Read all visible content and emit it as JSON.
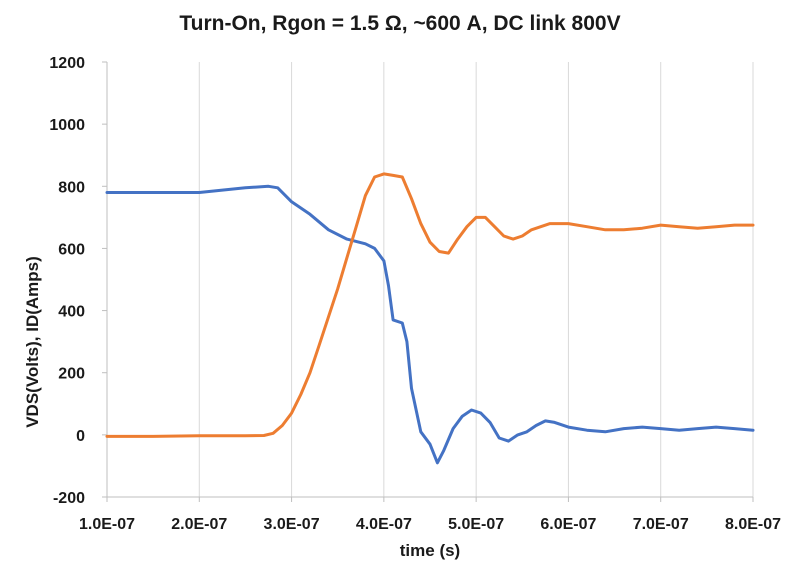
{
  "chart_data": {
    "type": "line",
    "title": "Turn-On, Rgon = 1.5 Ω, ~600 A, DC link 800V",
    "xlabel": "time (s)",
    "ylabel": "VDS(Volts), ID(Amps)",
    "xlim": [
      1e-07,
      8e-07
    ],
    "ylim": [
      -200,
      1200
    ],
    "x_ticks": [
      1e-07,
      2e-07,
      3e-07,
      4e-07,
      5e-07,
      6e-07,
      7e-07,
      8e-07
    ],
    "x_tick_labels": [
      "1.0E-07",
      "2.0E-07",
      "3.0E-07",
      "4.0E-07",
      "5.0E-07",
      "6.0E-07",
      "7.0E-07",
      "8.0E-07"
    ],
    "y_ticks": [
      -200,
      0,
      200,
      400,
      600,
      800,
      1000,
      1200
    ],
    "y_tick_labels": [
      "-200",
      "0",
      "200",
      "400",
      "600",
      "800",
      "1000",
      "1200"
    ],
    "grid": "vertical",
    "legend": "none",
    "series": [
      {
        "color": "#4472C4",
        "x": [
          1e-07,
          1.5e-07,
          2e-07,
          2.5e-07,
          2.75e-07,
          2.85e-07,
          3e-07,
          3.2e-07,
          3.4e-07,
          3.6e-07,
          3.8e-07,
          3.9e-07,
          4e-07,
          4.05e-07,
          4.1e-07,
          4.2e-07,
          4.25e-07,
          4.3e-07,
          4.4e-07,
          4.5e-07,
          4.58e-07,
          4.65e-07,
          4.75e-07,
          4.85e-07,
          4.95e-07,
          5.05e-07,
          5.15e-07,
          5.25e-07,
          5.35e-07,
          5.45e-07,
          5.55e-07,
          5.65e-07,
          5.75e-07,
          5.85e-07,
          6e-07,
          6.2e-07,
          6.4e-07,
          6.6e-07,
          6.8e-07,
          7e-07,
          7.2e-07,
          7.4e-07,
          7.6e-07,
          7.8e-07,
          8e-07
        ],
        "y": [
          780,
          780,
          780,
          795,
          800,
          795,
          750,
          710,
          660,
          630,
          615,
          600,
          560,
          480,
          370,
          360,
          300,
          150,
          10,
          -30,
          -90,
          -50,
          20,
          60,
          80,
          70,
          40,
          -10,
          -20,
          0,
          10,
          30,
          45,
          40,
          25,
          15,
          10,
          20,
          25,
          20,
          15,
          20,
          25,
          20,
          15
        ]
      },
      {
        "color": "#ED7D31",
        "x": [
          1e-07,
          1.5e-07,
          2e-07,
          2.5e-07,
          2.7e-07,
          2.8e-07,
          2.9e-07,
          3e-07,
          3.1e-07,
          3.2e-07,
          3.3e-07,
          3.4e-07,
          3.5e-07,
          3.6e-07,
          3.7e-07,
          3.8e-07,
          3.9e-07,
          4e-07,
          4.1e-07,
          4.2e-07,
          4.3e-07,
          4.4e-07,
          4.5e-07,
          4.6e-07,
          4.7e-07,
          4.8e-07,
          4.9e-07,
          5e-07,
          5.1e-07,
          5.2e-07,
          5.3e-07,
          5.4e-07,
          5.5e-07,
          5.6e-07,
          5.7e-07,
          5.8e-07,
          5.9e-07,
          6e-07,
          6.2e-07,
          6.4e-07,
          6.6e-07,
          6.8e-07,
          7e-07,
          7.2e-07,
          7.4e-07,
          7.6e-07,
          7.8e-07,
          8e-07
        ],
        "y": [
          -5,
          -5,
          -3,
          -3,
          -2,
          5,
          30,
          70,
          130,
          200,
          290,
          380,
          470,
          570,
          670,
          770,
          830,
          840,
          835,
          830,
          760,
          680,
          620,
          590,
          585,
          630,
          670,
          700,
          700,
          670,
          640,
          630,
          640,
          660,
          670,
          680,
          680,
          680,
          670,
          660,
          660,
          665,
          675,
          670,
          665,
          670,
          675,
          675
        ]
      }
    ]
  }
}
